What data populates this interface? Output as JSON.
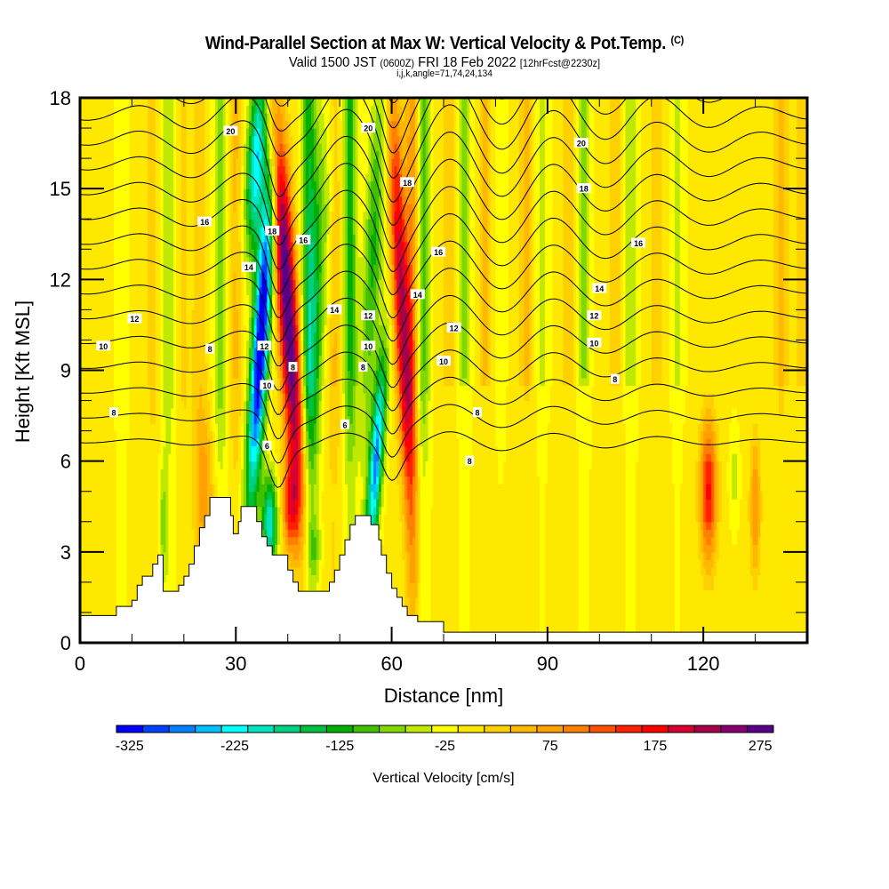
{
  "header": {
    "title": "Wind-Parallel Section at Max W: Vertical Velocity & Pot.Temp.",
    "copyright": "(C)",
    "valid_prefix": "Valid 1500 JST",
    "valid_utc": "(0600Z)",
    "valid_date": "FRI 18 Feb 2022",
    "forecast_info": "[12hrFcst@2230z]",
    "grid_info": "i,j,k,angle=71,74,24,134"
  },
  "chart_data": {
    "type": "heatmap",
    "title": "Wind-Parallel Section at Max W: Vertical Velocity & Pot.Temp.",
    "subtitle": "Valid 1500 JST (0600Z) FRI 18 Feb 2022 [12hrFcst@2230z]",
    "annotation": "i,j,k,angle=71,74,24,134",
    "xlabel": "Distance [nm]",
    "ylabel": "Height [Kft MSL]",
    "xlim": [
      0,
      140
    ],
    "ylim": [
      0,
      18
    ],
    "x_ticks": [
      0,
      30,
      60,
      90,
      120
    ],
    "x_minor_step": 10,
    "y_ticks": [
      0,
      3,
      6,
      9,
      12,
      15,
      18
    ],
    "y_minor_step": 1,
    "colorbar": {
      "title": "Vertical Velocity [cm/s]",
      "orientation": "horizontal",
      "placement": "bottom",
      "min": -325,
      "step": 25,
      "tick_labels": [
        "-325",
        "-225",
        "-125",
        "-25",
        "75",
        "175",
        "275"
      ],
      "colors": [
        "#0000ff",
        "#0040ff",
        "#0080ff",
        "#00bfff",
        "#00ffff",
        "#00e5bf",
        "#00d080",
        "#00c040",
        "#00b000",
        "#40c000",
        "#80d800",
        "#c0e800",
        "#ffff00",
        "#ffe800",
        "#ffd000",
        "#ffb800",
        "#ffa000",
        "#ff8000",
        "#ff5000",
        "#ff2000",
        "#ff0000",
        "#d80030",
        "#a80048",
        "#880070",
        "#580088"
      ]
    },
    "features": {
      "updrafts": [
        {
          "x_nm": 40,
          "peak_cms": 275,
          "z_range_kft": [
            5,
            18
          ]
        },
        {
          "x_nm": 62,
          "peak_cms": 200,
          "z_range_kft": [
            5,
            18
          ]
        },
        {
          "x_nm": 121,
          "peak_cms": 150,
          "z_range_kft": [
            2,
            8
          ]
        },
        {
          "x_nm": 130,
          "peak_cms": 100,
          "z_range_kft": [
            2,
            7
          ]
        }
      ],
      "downdrafts": [
        {
          "x_nm": 35,
          "min_cms": -325,
          "z_range_kft": [
            5,
            17
          ]
        },
        {
          "x_nm": 57,
          "min_cms": -225,
          "z_range_kft": [
            4,
            10
          ]
        }
      ]
    },
    "contours": {
      "name": "Potential Temperature",
      "labels": [
        {
          "text": "20",
          "x": 29,
          "y": 16.9
        },
        {
          "text": "16",
          "x": 24,
          "y": 13.9
        },
        {
          "text": "18",
          "x": 37,
          "y": 13.6
        },
        {
          "text": "16",
          "x": 43,
          "y": 13.3
        },
        {
          "text": "14",
          "x": 32.5,
          "y": 12.4
        },
        {
          "text": "12",
          "x": 10.5,
          "y": 10.7
        },
        {
          "text": "10",
          "x": 4.5,
          "y": 9.8
        },
        {
          "text": "8",
          "x": 25,
          "y": 9.7
        },
        {
          "text": "12",
          "x": 35.5,
          "y": 9.8
        },
        {
          "text": "10",
          "x": 36,
          "y": 8.5
        },
        {
          "text": "8",
          "x": 41,
          "y": 9.1
        },
        {
          "text": "6",
          "x": 36,
          "y": 6.5
        },
        {
          "text": "8",
          "x": 6.5,
          "y": 7.6
        },
        {
          "text": "20",
          "x": 55.5,
          "y": 17.0
        },
        {
          "text": "18",
          "x": 63,
          "y": 15.2
        },
        {
          "text": "16",
          "x": 69,
          "y": 12.9
        },
        {
          "text": "14",
          "x": 49,
          "y": 11.0
        },
        {
          "text": "12",
          "x": 55.5,
          "y": 10.8
        },
        {
          "text": "14",
          "x": 65,
          "y": 11.5
        },
        {
          "text": "12",
          "x": 72,
          "y": 10.4
        },
        {
          "text": "10",
          "x": 55.5,
          "y": 9.8
        },
        {
          "text": "8",
          "x": 54.5,
          "y": 9.1
        },
        {
          "text": "10",
          "x": 70,
          "y": 9.3
        },
        {
          "text": "6",
          "x": 51,
          "y": 7.2
        },
        {
          "text": "8",
          "x": 76.5,
          "y": 7.6
        },
        {
          "text": "8",
          "x": 75,
          "y": 6.0
        },
        {
          "text": "20",
          "x": 96.5,
          "y": 16.5
        },
        {
          "text": "18",
          "x": 97,
          "y": 15.0
        },
        {
          "text": "16",
          "x": 107.5,
          "y": 13.2
        },
        {
          "text": "14",
          "x": 100,
          "y": 11.7
        },
        {
          "text": "12",
          "x": 99,
          "y": 10.8
        },
        {
          "text": "10",
          "x": 99,
          "y": 9.9
        },
        {
          "text": "8",
          "x": 103,
          "y": 8.7
        }
      ]
    },
    "terrain_profile_kft": [
      [
        0,
        0.9
      ],
      [
        7,
        0.9
      ],
      [
        7,
        1.2
      ],
      [
        10,
        1.2
      ],
      [
        10,
        1.4
      ],
      [
        11,
        1.4
      ],
      [
        11,
        1.9
      ],
      [
        12,
        1.9
      ],
      [
        12,
        2.2
      ],
      [
        14,
        2.2
      ],
      [
        14,
        2.6
      ],
      [
        15,
        2.6
      ],
      [
        15,
        2.9
      ],
      [
        16,
        2.9
      ],
      [
        16,
        1.7
      ],
      [
        17,
        1.7
      ],
      [
        17,
        1.7
      ],
      [
        19,
        1.7
      ],
      [
        19,
        1.9
      ],
      [
        20,
        1.9
      ],
      [
        20,
        2.2
      ],
      [
        21,
        2.2
      ],
      [
        21,
        2.6
      ],
      [
        22,
        2.6
      ],
      [
        22,
        3.2
      ],
      [
        23,
        3.2
      ],
      [
        23,
        3.8
      ],
      [
        24,
        3.8
      ],
      [
        24,
        4.2
      ],
      [
        25,
        4.2
      ],
      [
        25,
        4.8
      ],
      [
        29,
        4.8
      ],
      [
        29,
        4.2
      ],
      [
        29.5,
        4.2
      ],
      [
        29.5,
        3.6
      ],
      [
        30.5,
        3.6
      ],
      [
        30.5,
        4.0
      ],
      [
        31,
        4.0
      ],
      [
        31,
        4.5
      ],
      [
        34,
        4.5
      ],
      [
        34,
        4.0
      ],
      [
        35,
        4.0
      ],
      [
        35,
        3.5
      ],
      [
        36,
        3.5
      ],
      [
        36,
        3.2
      ],
      [
        37,
        3.2
      ],
      [
        37,
        2.9
      ],
      [
        40,
        2.9
      ],
      [
        40,
        2.4
      ],
      [
        41,
        2.4
      ],
      [
        41,
        2.0
      ],
      [
        42,
        2.0
      ],
      [
        42,
        1.7
      ],
      [
        48,
        1.7
      ],
      [
        48,
        2.0
      ],
      [
        49,
        2.0
      ],
      [
        49,
        2.4
      ],
      [
        50,
        2.4
      ],
      [
        50,
        2.9
      ],
      [
        51,
        2.9
      ],
      [
        51,
        3.4
      ],
      [
        52,
        3.4
      ],
      [
        52,
        3.9
      ],
      [
        53,
        3.9
      ],
      [
        53,
        4.2
      ],
      [
        56,
        4.2
      ],
      [
        56,
        3.9
      ],
      [
        57.5,
        3.9
      ],
      [
        57.5,
        3.4
      ],
      [
        58,
        3.4
      ],
      [
        58,
        2.9
      ],
      [
        59,
        2.9
      ],
      [
        59,
        2.3
      ],
      [
        60,
        2.3
      ],
      [
        60,
        1.8
      ],
      [
        61,
        1.8
      ],
      [
        61,
        1.5
      ],
      [
        62,
        1.5
      ],
      [
        62,
        1.2
      ],
      [
        63,
        1.2
      ],
      [
        63,
        0.9
      ],
      [
        65,
        0.9
      ],
      [
        65,
        0.7
      ],
      [
        70,
        0.7
      ],
      [
        70,
        0.35
      ],
      [
        140,
        0.35
      ]
    ]
  }
}
